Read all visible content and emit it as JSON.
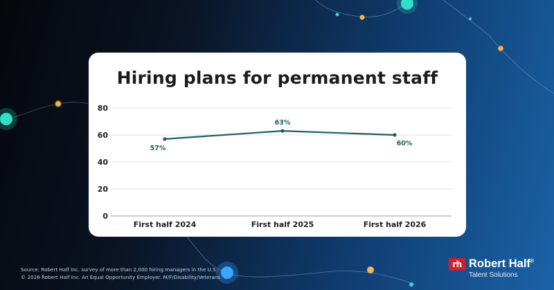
{
  "chart_data": {
    "type": "line",
    "title": "Hiring plans for permanent staff",
    "categories": [
      "First half 2024",
      "First half 2025",
      "First half 2026"
    ],
    "values": [
      57,
      63,
      60
    ],
    "data_labels": [
      "57%",
      "63%",
      "60%"
    ],
    "ylim": [
      0,
      80
    ],
    "yticks": [
      0,
      20,
      40,
      60,
      80
    ],
    "ytick_labels": [
      "0",
      "20",
      "40",
      "60",
      "80"
    ],
    "grid": true,
    "xlabel": "",
    "ylabel": ""
  },
  "footer": {
    "source": "Source: Robert Half Inc. survey of more than 2,000 hiring managers in the U.S.",
    "copyright": "© 2026 Robert Half Inc. An Equal Opportunity Employer. M/F/Disability/Veterans."
  },
  "brand": {
    "logo_text": "rh",
    "name": "Robert Half",
    "registered_mark": "®",
    "subtitle": "Talent Solutions"
  },
  "colors": {
    "line": "#1f5d63",
    "grid": "#d9d9d9",
    "brand_red": "#d0202f",
    "card": "#ffffff"
  }
}
